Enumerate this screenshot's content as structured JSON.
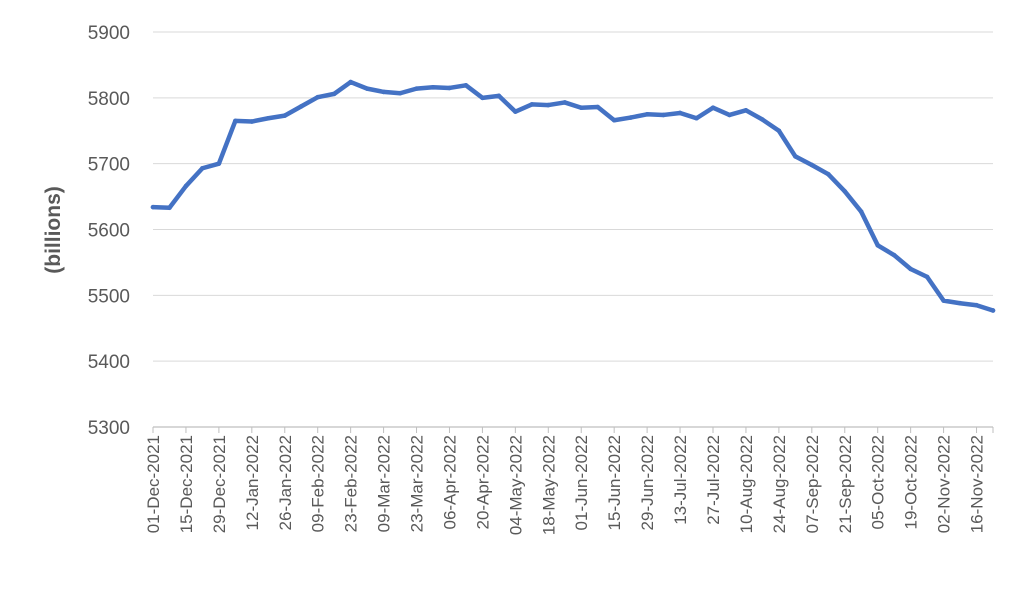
{
  "chart_data": {
    "type": "line",
    "title": "",
    "xlabel": "",
    "ylabel": "(billions)",
    "ylim": [
      5300,
      5900
    ],
    "yticks": [
      5300,
      5400,
      5500,
      5600,
      5700,
      5800,
      5900
    ],
    "grid": true,
    "legend": "none",
    "colors": {
      "line": "#4472c4",
      "grid": "#d9d9d9",
      "axis": "#bfbfbf",
      "text": "#595959"
    },
    "x_tick_labels": [
      "01-Dec-2021",
      "15-Dec-2021",
      "29-Dec-2021",
      "12-Jan-2022",
      "26-Jan-2022",
      "09-Feb-2022",
      "23-Feb-2022",
      "09-Mar-2022",
      "23-Mar-2022",
      "06-Apr-2022",
      "20-Apr-2022",
      "04-May-2022",
      "18-May-2022",
      "01-Jun-2022",
      "15-Jun-2022",
      "29-Jun-2022",
      "13-Jul-2022",
      "27-Jul-2022",
      "10-Aug-2022",
      "24-Aug-2022",
      "07-Sep-2022",
      "21-Sep-2022",
      "05-Oct-2022",
      "19-Oct-2022",
      "02-Nov-2022",
      "16-Nov-2022"
    ],
    "x": [
      "01-Dec-2021",
      "08-Dec-2021",
      "15-Dec-2021",
      "22-Dec-2021",
      "29-Dec-2021",
      "05-Jan-2022",
      "12-Jan-2022",
      "19-Jan-2022",
      "26-Jan-2022",
      "02-Feb-2022",
      "09-Feb-2022",
      "16-Feb-2022",
      "23-Feb-2022",
      "02-Mar-2022",
      "09-Mar-2022",
      "16-Mar-2022",
      "23-Mar-2022",
      "30-Mar-2022",
      "06-Apr-2022",
      "13-Apr-2022",
      "20-Apr-2022",
      "27-Apr-2022",
      "04-May-2022",
      "11-May-2022",
      "18-May-2022",
      "25-May-2022",
      "01-Jun-2022",
      "08-Jun-2022",
      "15-Jun-2022",
      "22-Jun-2022",
      "29-Jun-2022",
      "06-Jul-2022",
      "13-Jul-2022",
      "20-Jul-2022",
      "27-Jul-2022",
      "03-Aug-2022",
      "10-Aug-2022",
      "17-Aug-2022",
      "24-Aug-2022",
      "31-Aug-2022",
      "07-Sep-2022",
      "14-Sep-2022",
      "21-Sep-2022",
      "28-Sep-2022",
      "05-Oct-2022",
      "12-Oct-2022",
      "19-Oct-2022",
      "26-Oct-2022",
      "02-Nov-2022",
      "09-Nov-2022",
      "16-Nov-2022",
      "23-Nov-2022"
    ],
    "series": [
      {
        "values": [
          5634,
          5633,
          5666,
          5693,
          5700,
          5765,
          5764,
          5769,
          5773,
          5787,
          5801,
          5806,
          5824,
          5814,
          5809,
          5807,
          5814,
          5816,
          5815,
          5819,
          5800,
          5803,
          5779,
          5790,
          5789,
          5793,
          5785,
          5786,
          5766,
          5770,
          5775,
          5774,
          5777,
          5769,
          5785,
          5774,
          5781,
          5767,
          5750,
          5711,
          5698,
          5684,
          5658,
          5627,
          5576,
          5561,
          5540,
          5528,
          5492,
          5488,
          5485,
          5477
        ]
      }
    ]
  }
}
